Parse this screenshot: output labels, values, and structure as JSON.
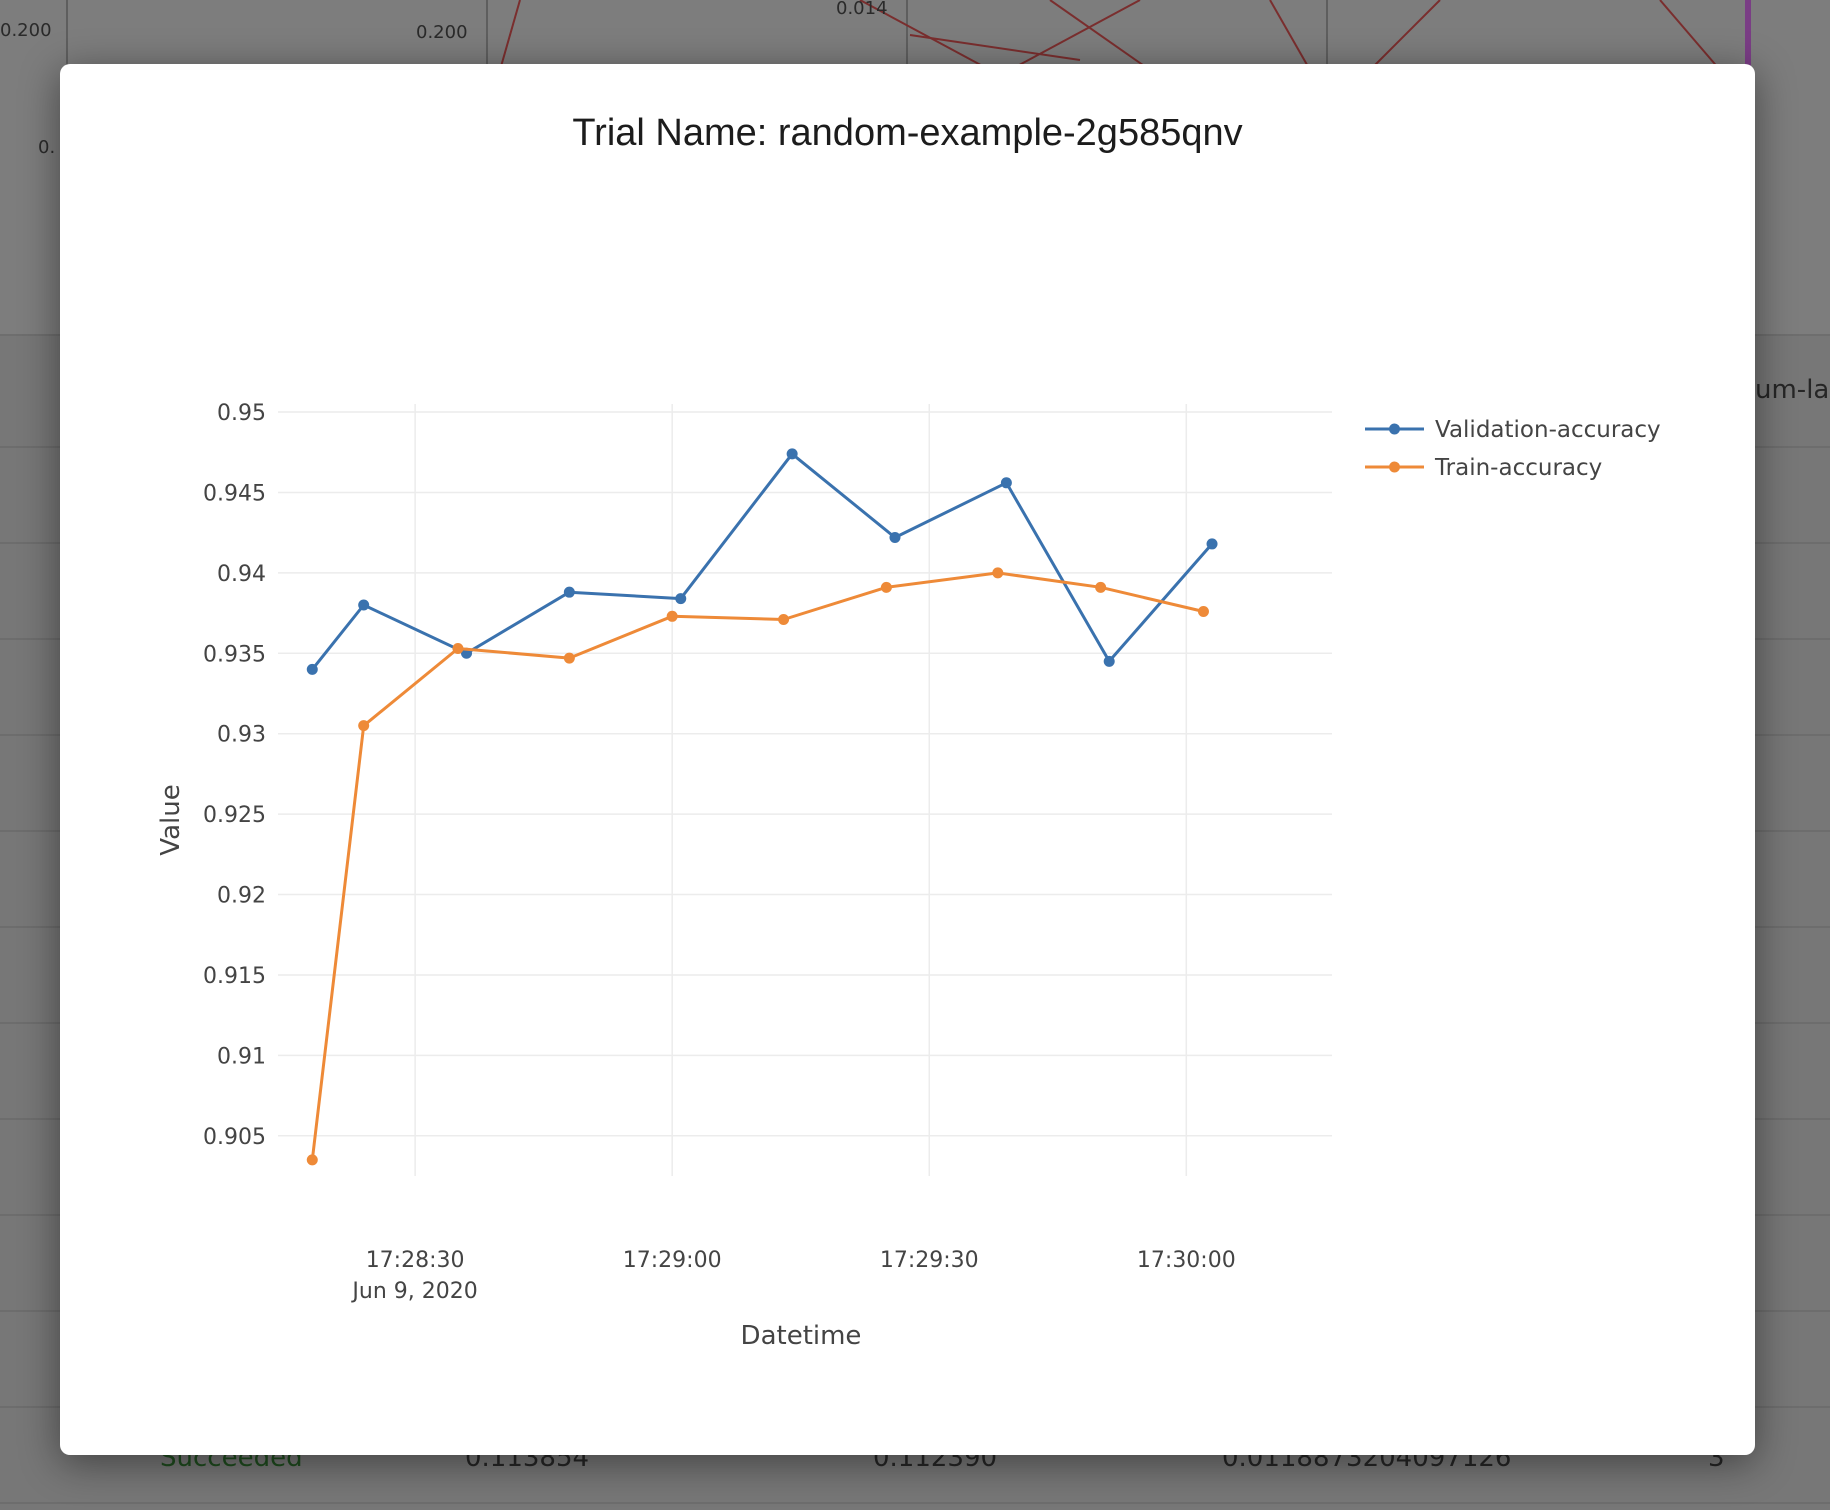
{
  "background": {
    "plot_ticks": [
      "0.200",
      "0.200",
      "0.014",
      "0."
    ],
    "column_fragment": "um-laye",
    "table_row": {
      "status": "Succeeded",
      "cells": [
        "0.113854",
        "0.112390",
        "0.0118873204097126",
        "3"
      ]
    }
  },
  "modal": {
    "title": "Trial Name: random-example-2g585qnv"
  },
  "chart_data": {
    "type": "line",
    "title": "Trial Name: random-example-2g585qnv",
    "xlabel": "Datetime",
    "ylabel": "Value",
    "x_type": "datetime",
    "date_label": "Jun 9, 2020",
    "xlim": [
      "17:28:14",
      "17:30:17"
    ],
    "ylim": [
      0.9025,
      0.9505
    ],
    "yticks": [
      0.905,
      0.91,
      0.915,
      0.92,
      0.925,
      0.93,
      0.935,
      0.94,
      0.945,
      0.95
    ],
    "ytick_labels": [
      "0.905",
      "0.91",
      "0.915",
      "0.92",
      "0.925",
      "0.93",
      "0.935",
      "0.94",
      "0.945",
      "0.95"
    ],
    "xticks": [
      "17:28:30",
      "17:29:00",
      "17:29:30",
      "17:30:00"
    ],
    "grid": true,
    "legend_position": "top-right",
    "series": [
      {
        "name": "Validation-accuracy",
        "color": "#3a72ae",
        "points": [
          [
            "17:28:18",
            0.934
          ],
          [
            "17:28:24",
            0.938
          ],
          [
            "17:28:36",
            0.935
          ],
          [
            "17:28:48",
            0.9388
          ],
          [
            "17:29:01",
            0.9384
          ],
          [
            "17:29:14",
            0.9474
          ],
          [
            "17:29:26",
            0.9422
          ],
          [
            "17:29:39",
            0.9456
          ],
          [
            "17:29:51",
            0.9345
          ],
          [
            "17:30:03",
            0.9418
          ]
        ]
      },
      {
        "name": "Train-accuracy",
        "color": "#ee8a38",
        "points": [
          [
            "17:28:18",
            0.9035
          ],
          [
            "17:28:24",
            0.9305
          ],
          [
            "17:28:35",
            0.9353
          ],
          [
            "17:28:48",
            0.9347
          ],
          [
            "17:29:00",
            0.9373
          ],
          [
            "17:29:13",
            0.9371
          ],
          [
            "17:29:25",
            0.9391
          ],
          [
            "17:29:38",
            0.94
          ],
          [
            "17:29:50",
            0.9391
          ],
          [
            "17:30:02",
            0.9376
          ]
        ]
      }
    ]
  }
}
